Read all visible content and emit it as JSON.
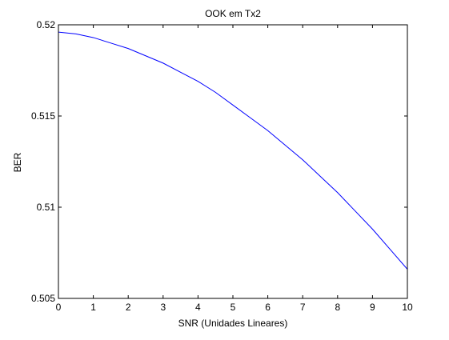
{
  "chart_data": {
    "type": "line",
    "title": "OOK em Tx2",
    "xlabel": "SNR (Unidades Lineares)",
    "ylabel": "BER",
    "xlim": [
      0,
      10
    ],
    "ylim": [
      0.505,
      0.52
    ],
    "xticks": [
      0,
      1,
      2,
      3,
      4,
      5,
      6,
      7,
      8,
      9,
      10
    ],
    "xtick_labels": [
      "0",
      "1",
      "2",
      "3",
      "4",
      "5",
      "6",
      "7",
      "8",
      "9",
      "10"
    ],
    "yticks": [
      0.505,
      0.51,
      0.515,
      0.52
    ],
    "ytick_labels": [
      "0.505",
      "0.51",
      "0.515",
      "0.52"
    ],
    "grid": false,
    "legend": "none",
    "series": [
      {
        "color": "#0000ff",
        "x": [
          0,
          0.5,
          1,
          1.5,
          2,
          2.5,
          3,
          3.5,
          4,
          4.5,
          5,
          5.5,
          6,
          6.5,
          7,
          7.5,
          8,
          8.5,
          9,
          9.5,
          10
        ],
        "y": [
          0.5196,
          0.5195,
          0.5193,
          0.519,
          0.5187,
          0.5183,
          0.5179,
          0.5174,
          0.5169,
          0.5163,
          0.5156,
          0.5149,
          0.5142,
          0.5134,
          0.5126,
          0.5117,
          0.5108,
          0.5098,
          0.5088,
          0.5077,
          0.5066
        ]
      }
    ]
  }
}
